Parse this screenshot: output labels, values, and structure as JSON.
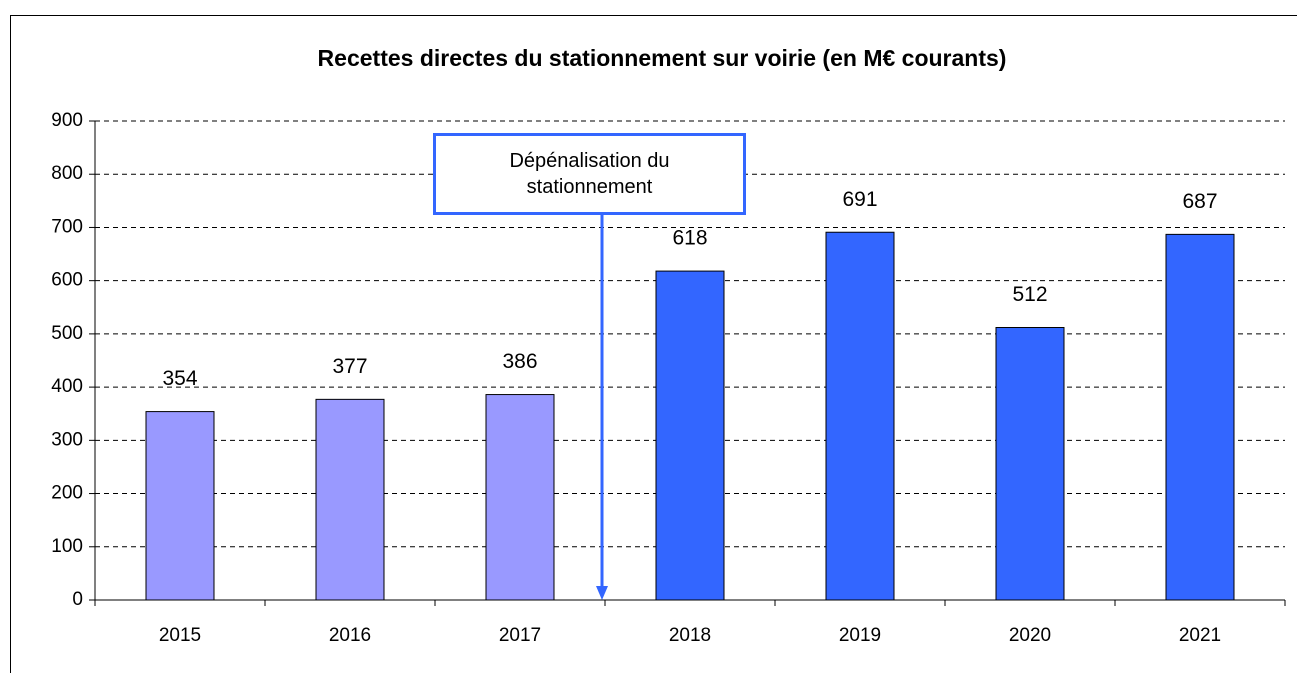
{
  "chart_data": {
    "type": "bar",
    "title": "Recettes directes du stationnement sur voirie (en M€ courants)",
    "categories": [
      "2015",
      "2016",
      "2017",
      "2018",
      "2019",
      "2020",
      "2021"
    ],
    "values": [
      354,
      377,
      386,
      618,
      691,
      512,
      687
    ],
    "colors": [
      "#9999ff",
      "#9999ff",
      "#9999ff",
      "#3366ff",
      "#3366ff",
      "#3366ff",
      "#3366ff"
    ],
    "ylim": [
      0,
      900
    ],
    "yticks": [
      0,
      100,
      200,
      300,
      400,
      500,
      600,
      700,
      800,
      900
    ],
    "grid": true,
    "annotation": "Dépénalisation du stationnement",
    "annotation_color": "#3366ff"
  }
}
